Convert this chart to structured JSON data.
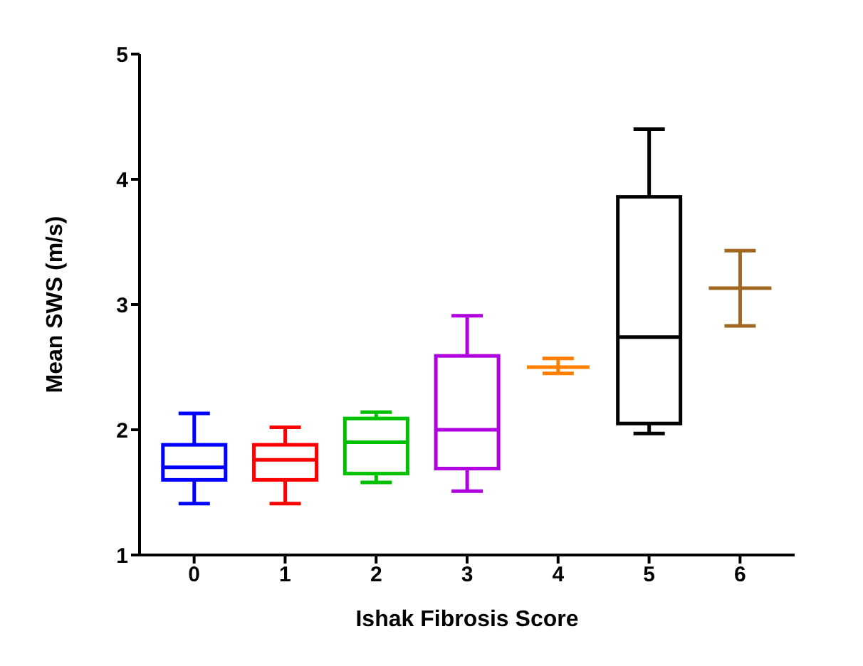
{
  "chart_data": {
    "type": "box",
    "xlabel": "Ishak Fibrosis Score",
    "ylabel": "Mean SWS (m/s)",
    "categories": [
      "0",
      "1",
      "2",
      "3",
      "4",
      "5",
      "6"
    ],
    "colors": [
      "#0000ff",
      "#ff0000",
      "#00c000",
      "#b000e0",
      "#ff8000",
      "#000000",
      "#a06820"
    ],
    "boxes": [
      {
        "low": 1.41,
        "q1": 1.6,
        "median": 1.7,
        "q3": 1.88,
        "high": 2.13
      },
      {
        "low": 1.41,
        "q1": 1.6,
        "median": 1.76,
        "q3": 1.88,
        "high": 2.02
      },
      {
        "low": 1.58,
        "q1": 1.65,
        "median": 1.9,
        "q3": 2.09,
        "high": 2.14
      },
      {
        "low": 1.51,
        "q1": 1.69,
        "median": 2.0,
        "q3": 2.59,
        "high": 2.91
      },
      {
        "low": 2.45,
        "q1": 2.5,
        "median": 2.5,
        "q3": 2.5,
        "high": 2.57
      },
      {
        "low": 1.97,
        "q1": 2.05,
        "median": 2.74,
        "q3": 3.86,
        "high": 4.4
      },
      {
        "low": 2.83,
        "q1": 3.13,
        "median": 3.13,
        "q3": 3.13,
        "high": 3.43
      }
    ],
    "ylim": [
      1,
      5
    ],
    "yticks": [
      1,
      2,
      3,
      4,
      5
    ],
    "grid": false
  }
}
